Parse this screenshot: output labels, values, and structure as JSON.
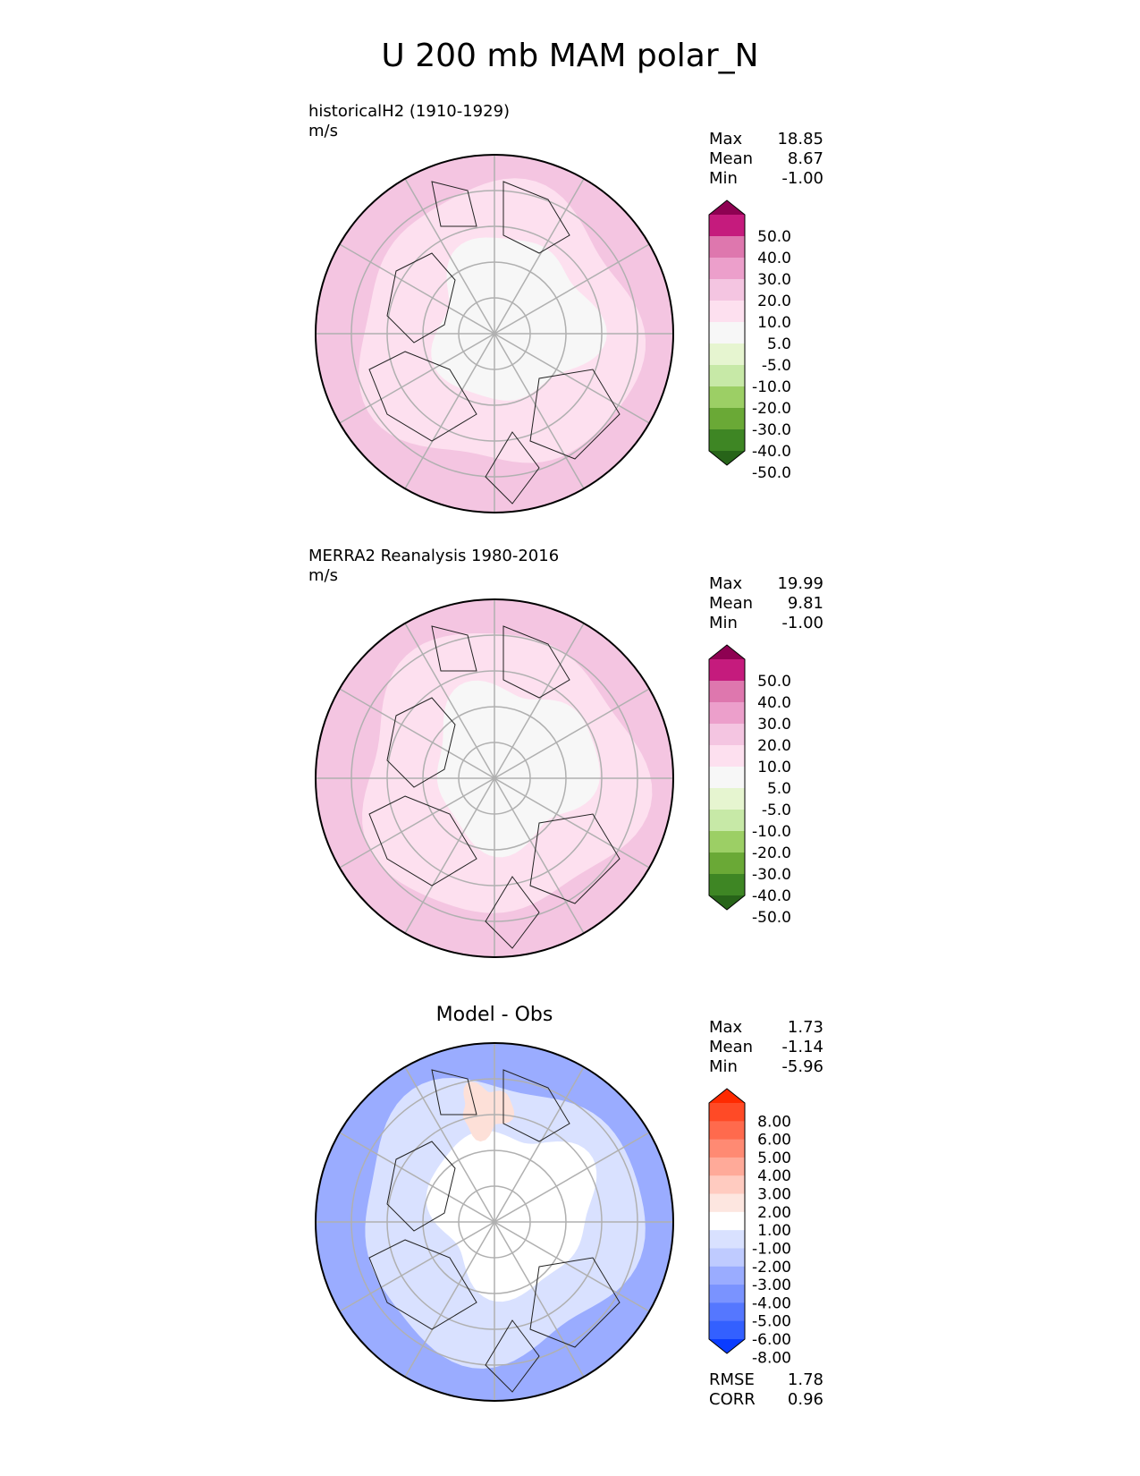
{
  "title": "U 200 mb MAM polar_N",
  "chart_data": [
    {
      "type": "polar contour map",
      "title": "historicalH2 (1910-1929)",
      "units": "m/s",
      "stats": [
        {
          "label": "Max",
          "value": "18.85"
        },
        {
          "label": "Mean",
          "value": "8.67"
        },
        {
          "label": "Min",
          "value": "-1.00"
        }
      ],
      "colorbar": {
        "ticks": [
          "50.0",
          "40.0",
          "30.0",
          "20.0",
          "10.0",
          "5.0",
          "-5.0",
          "-10.0",
          "-20.0",
          "-30.0",
          "-40.0",
          "-50.0"
        ],
        "colors": [
          "#8e0152",
          "#c51b7d",
          "#de77ae",
          "#ec9fcb",
          "#f4c5e1",
          "#fde0ef",
          "#f7f7f7",
          "#e6f5d0",
          "#c7e9a7",
          "#9ccf65",
          "#6aa936",
          "#3e8624",
          "#276419"
        ]
      },
      "map_colors": {
        "outer": "#f4c5e1",
        "middle": "#fde0ef",
        "inner": "#f7f7f7"
      }
    },
    {
      "type": "polar contour map",
      "title": "MERRA2 Reanalysis 1980-2016",
      "units": "m/s",
      "stats": [
        {
          "label": "Max",
          "value": "19.99"
        },
        {
          "label": "Mean",
          "value": "9.81"
        },
        {
          "label": "Min",
          "value": "-1.00"
        }
      ],
      "colorbar": {
        "ticks": [
          "50.0",
          "40.0",
          "30.0",
          "20.0",
          "10.0",
          "5.0",
          "-5.0",
          "-10.0",
          "-20.0",
          "-30.0",
          "-40.0",
          "-50.0"
        ],
        "colors": [
          "#8e0152",
          "#c51b7d",
          "#de77ae",
          "#ec9fcb",
          "#f4c5e1",
          "#fde0ef",
          "#f7f7f7",
          "#e6f5d0",
          "#c7e9a7",
          "#9ccf65",
          "#6aa936",
          "#3e8624",
          "#276419"
        ]
      },
      "map_colors": {
        "outer": "#f4c5e1",
        "middle": "#fde0ef",
        "inner": "#f7f7f7"
      }
    },
    {
      "type": "polar contour map",
      "title": "Model - Obs",
      "stats": [
        {
          "label": "Max",
          "value": "1.73"
        },
        {
          "label": "Mean",
          "value": "-1.14"
        },
        {
          "label": "Min",
          "value": "-5.96"
        }
      ],
      "metrics": [
        {
          "label": "RMSE",
          "value": "1.78"
        },
        {
          "label": "CORR",
          "value": "0.96"
        }
      ],
      "colorbar": {
        "ticks": [
          "8.00",
          "6.00",
          "5.00",
          "4.00",
          "3.00",
          "2.00",
          "1.00",
          "-1.00",
          "-2.00",
          "-3.00",
          "-4.00",
          "-5.00",
          "-6.00",
          "-8.00"
        ],
        "colors": [
          "#ff2a00",
          "#ff4a26",
          "#ff6a4d",
          "#ff8a73",
          "#ffaa99",
          "#ffcbc0",
          "#fde6e0",
          "#ffffff",
          "#d9e1ff",
          "#bfcbff",
          "#9aacff",
          "#7a93ff",
          "#5577ff",
          "#3360ff",
          "#0a3cff"
        ]
      },
      "map_colors": {
        "outer": "#9aacff",
        "middle": "#d9e1ff",
        "inner": "#ffffff",
        "positive": "#fde0d8"
      }
    }
  ]
}
